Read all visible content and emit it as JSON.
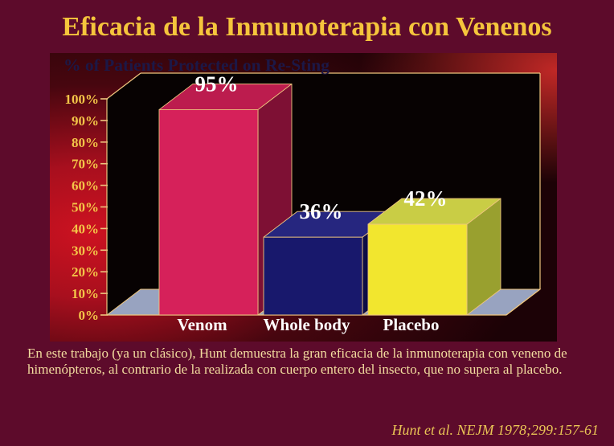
{
  "slide": {
    "title": "Eficacia de la Inmunoterapia con Venenos",
    "body_text": "En este trabajo (ya un clásico), Hunt demuestra la gran eficacia de la inmunoterapia con veneno de himenópteros, al contrario de la realizada con cuerpo entero del insecto, que no supera al placebo.",
    "citation": "Hunt et al. NEJM 1978;299:157-61"
  },
  "chart_data": {
    "type": "bar",
    "style": "3d-bar",
    "title": "% of Patients Protected on Re-Sting",
    "categories": [
      "Venom",
      "Whole body",
      "Placebo"
    ],
    "values": [
      95,
      36,
      42
    ],
    "value_labels": [
      "95%",
      "36%",
      "42%"
    ],
    "xlabel": "",
    "ylabel": "",
    "ylim": [
      0,
      100
    ],
    "ytick_step": 10,
    "ytick_labels": [
      "0%",
      "10%",
      "20%",
      "30%",
      "40%",
      "50%",
      "60%",
      "70%",
      "80%",
      "90%",
      "100%"
    ],
    "grid": false,
    "legend": false,
    "colors": {
      "series_front": [
        "#d6215a",
        "#18186c",
        "#f2e62e"
      ],
      "series_top": [
        "#bc1c4e",
        "#26267f",
        "#c9cd45"
      ],
      "series_side": [
        "#7e1034",
        "#0c0c45",
        "#99a02f"
      ],
      "plot_wall": "#070202",
      "floor": "#98a3c0",
      "edge_line": "#eec57e",
      "axis_label": "#f3c548",
      "category_label": "#ffffff",
      "value_label": "#ffffff",
      "chart_title": "#1c1847",
      "bg_red": "#cd1220",
      "bg_dark": "#1c0206"
    }
  },
  "colors": {
    "slide_background": "#5d0b2b",
    "title_color": "#f5c53c",
    "body_color": "#f3dd9f",
    "citation_color": "#e9c455"
  }
}
